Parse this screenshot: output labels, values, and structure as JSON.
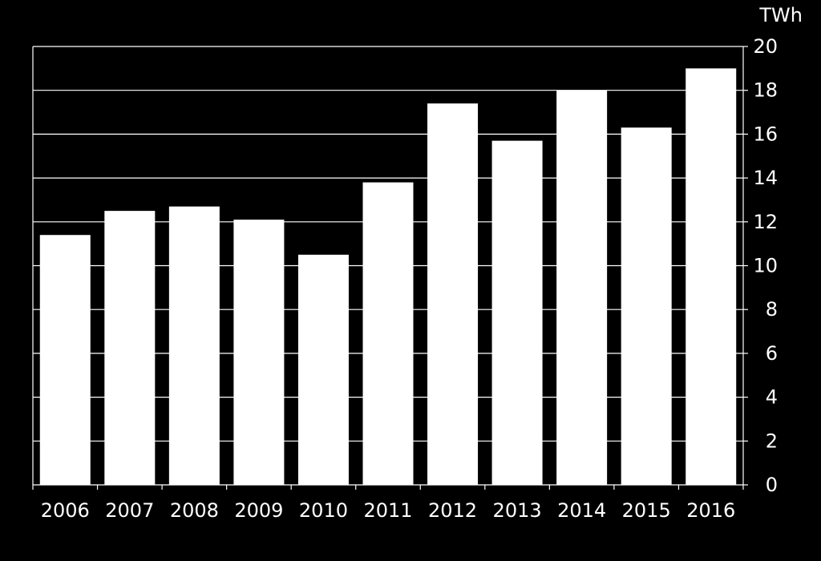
{
  "chart_data": {
    "type": "bar",
    "categories": [
      "2006",
      "2007",
      "2008",
      "2009",
      "2010",
      "2011",
      "2012",
      "2013",
      "2014",
      "2015",
      "2016"
    ],
    "values": [
      11.4,
      12.5,
      12.7,
      12.1,
      10.5,
      13.8,
      17.4,
      15.7,
      18.0,
      16.3,
      19.0
    ],
    "title": "",
    "xlabel": "",
    "ylabel": "TWh",
    "ylim": [
      0,
      20
    ],
    "yticks": [
      0,
      2,
      4,
      6,
      8,
      10,
      12,
      14,
      16,
      18,
      20
    ],
    "y_axis_side": "right",
    "grid": true,
    "legend": "none",
    "colors": {
      "background": "#000000",
      "bar": "#ffffff",
      "axis": "#ffffff",
      "grid": "#ffffff",
      "text": "#ffffff"
    }
  }
}
